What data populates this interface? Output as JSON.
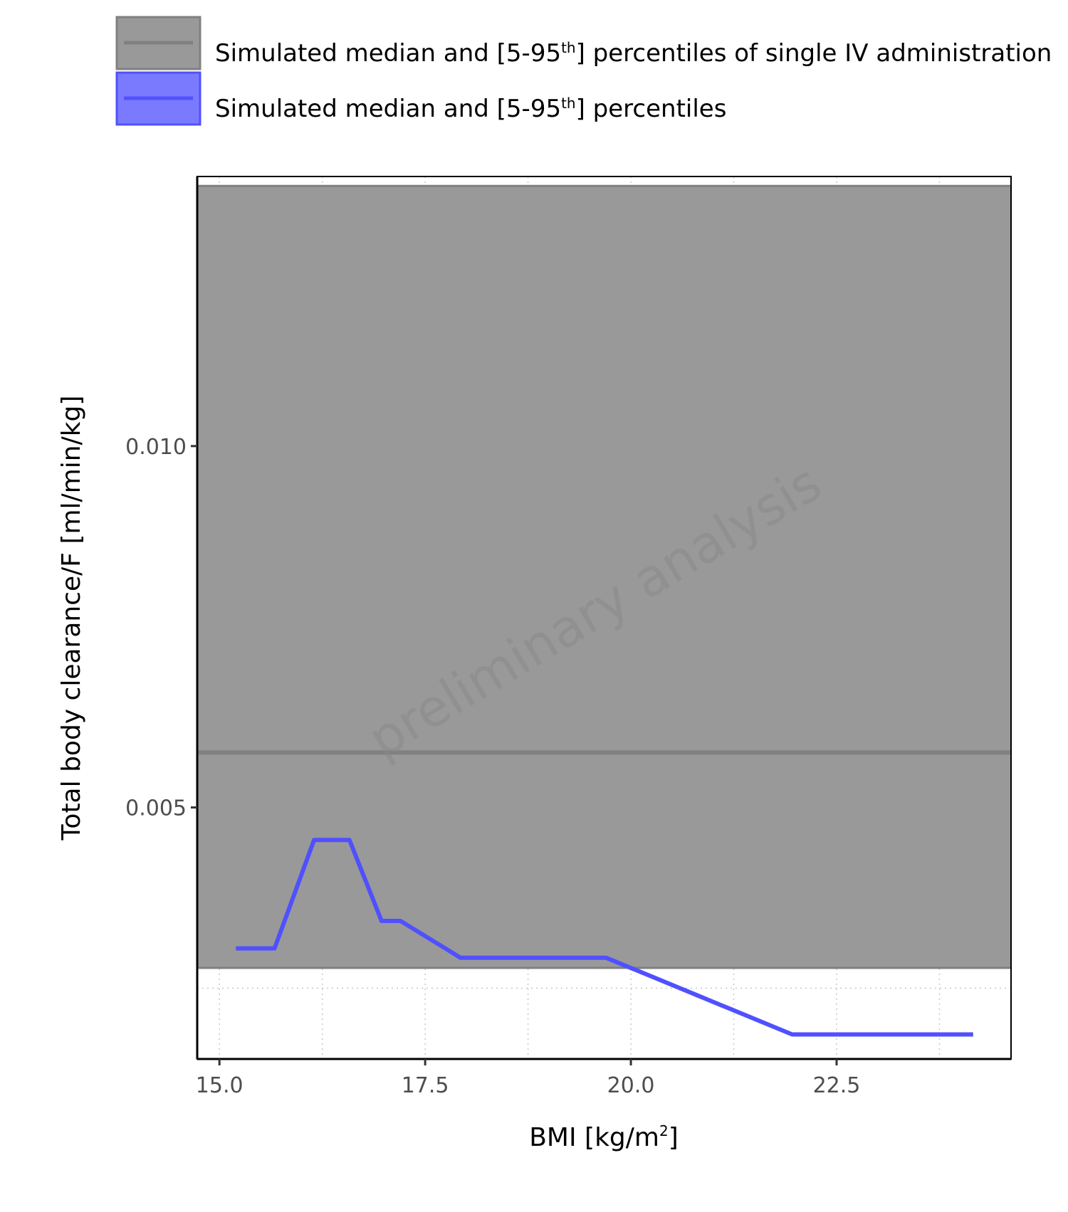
{
  "chart_data": {
    "type": "line",
    "title": "",
    "xlabel": {
      "text": "BMI [kg/m",
      "sup": "2",
      "tail": "]"
    },
    "ylabel": "Total body clearance/F [ml/min/kg]",
    "xlim": [
      14.73,
      24.62
    ],
    "ylim": [
      0.00152,
      0.01373
    ],
    "x_ticks": [
      15.0,
      17.5,
      20.0,
      22.5
    ],
    "x_tick_labels": [
      "15.0",
      "17.5",
      "20.0",
      "22.5"
    ],
    "y_ticks": [
      0.005,
      0.01
    ],
    "y_tick_labels": [
      "0.005",
      "0.010"
    ],
    "grid": true,
    "legend_position": "top",
    "watermark": "preliminary analysis",
    "reference_band": {
      "legend": {
        "pre": "Simulated median and [5-95",
        "sup": "th",
        "post": "] percentiles of single IV administration"
      },
      "median": 0.00576,
      "p5": 0.00278,
      "p95": 0.0136,
      "fill_color": "#999999",
      "line_color": "#808080"
    },
    "series": [
      {
        "legend": {
          "pre": "Simulated median and [5-95",
          "sup": "th",
          "post": "] percentiles"
        },
        "color": "#5050ff",
        "x": [
          15.2,
          15.67,
          16.15,
          16.58,
          16.97,
          17.2,
          17.93,
          19.7,
          21.96,
          24.16
        ],
        "y": [
          0.00305,
          0.00305,
          0.00455,
          0.00455,
          0.00343,
          0.00343,
          0.00292,
          0.00292,
          0.00186,
          0.00186
        ]
      }
    ]
  }
}
